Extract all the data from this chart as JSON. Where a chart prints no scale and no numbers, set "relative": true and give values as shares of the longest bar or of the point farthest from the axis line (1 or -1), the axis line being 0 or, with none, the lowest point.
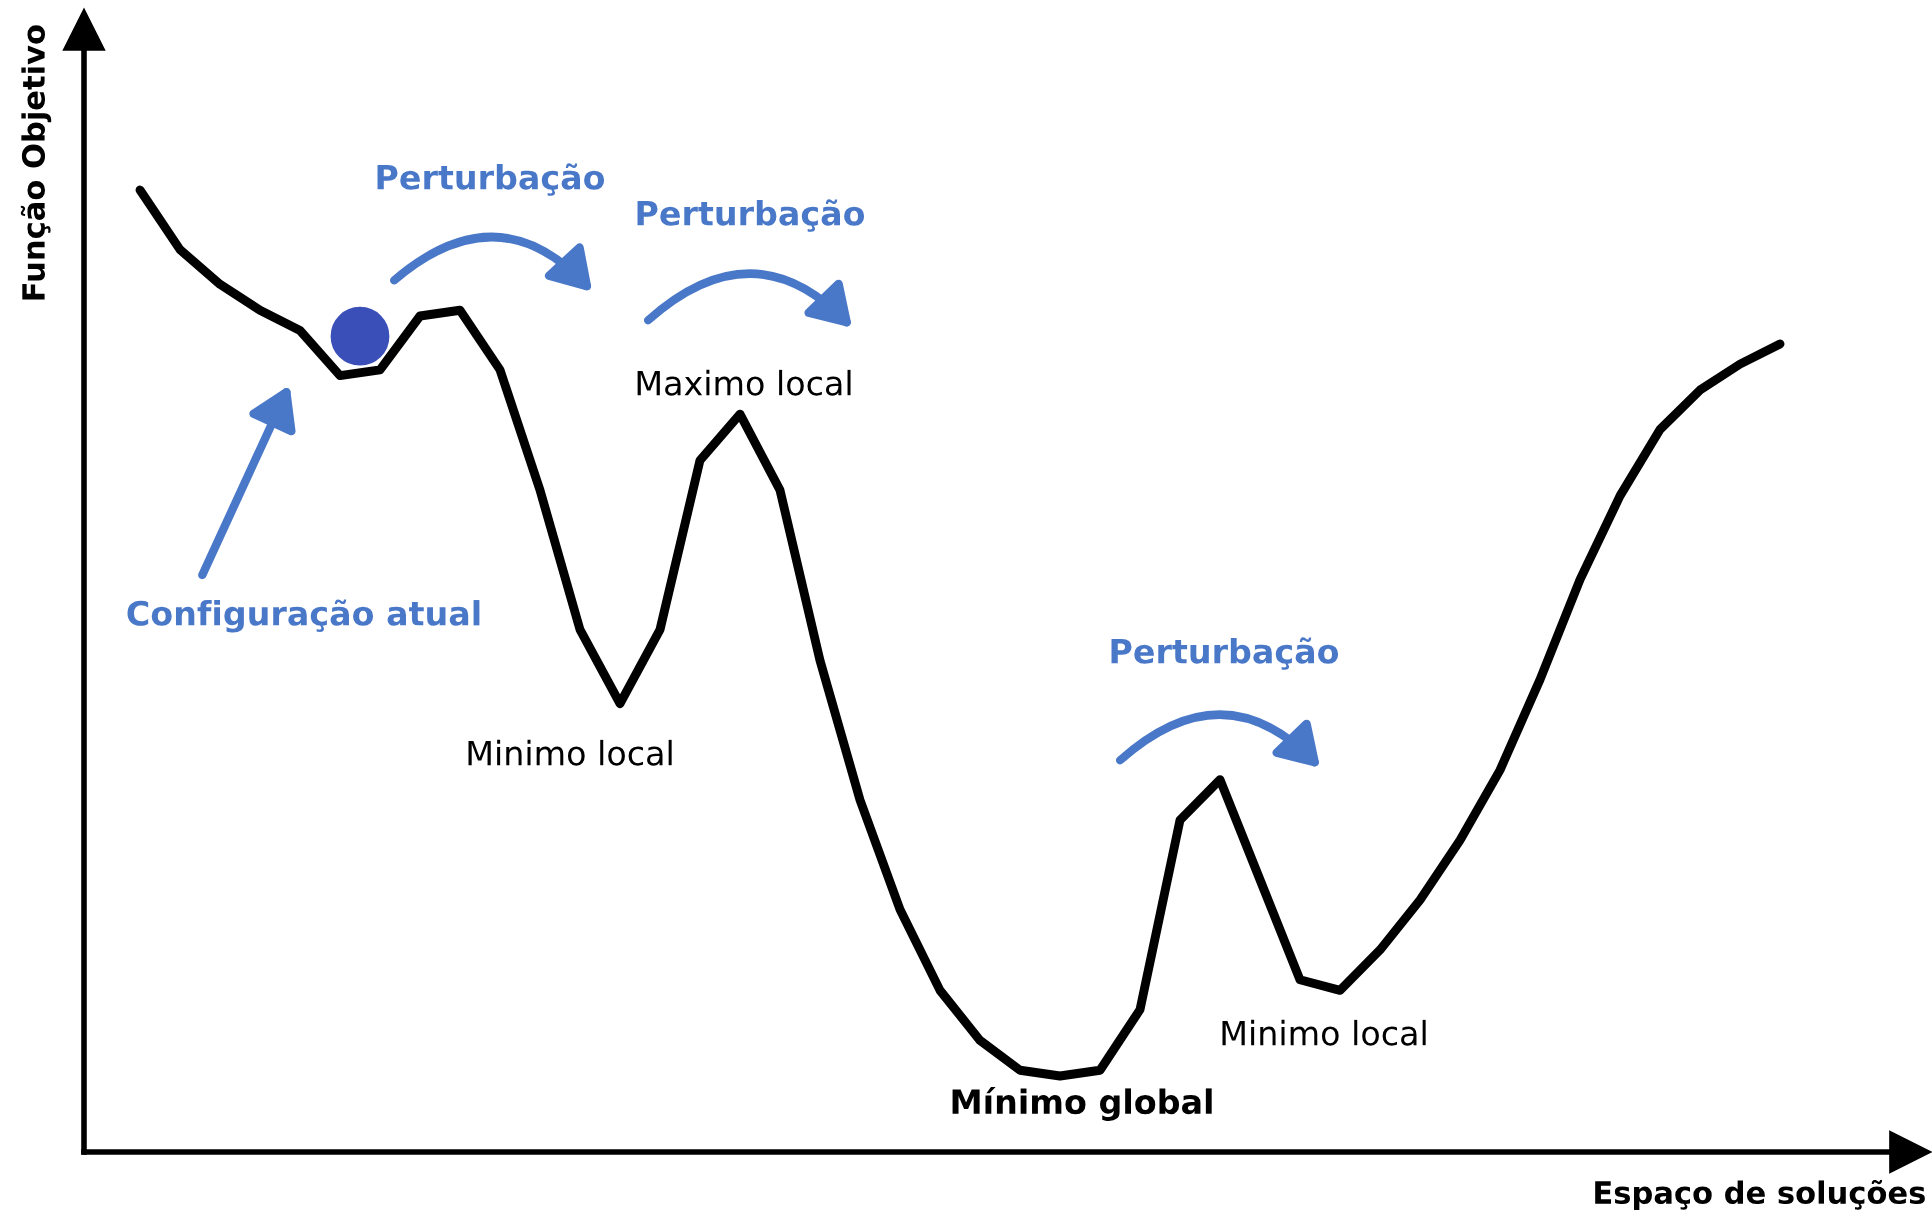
{
  "chart_data": {
    "type": "line",
    "relative": true,
    "xlabel": "Espaço de soluções",
    "ylabel": "Função Objetivo",
    "categories": [
      null,
      null,
      null,
      null,
      null,
      null,
      null,
      null,
      null,
      null,
      null,
      null,
      null,
      null,
      null,
      null,
      null,
      null,
      null,
      null,
      null,
      null,
      null,
      null,
      null,
      null,
      null,
      null,
      null,
      null,
      null,
      null,
      null,
      null,
      null,
      null,
      null,
      null,
      null,
      null,
      null,
      null
    ],
    "series": [
      {
        "color": "#000000",
        "values": [
          1,
          0.938,
          0.902,
          0.875,
          0.854,
          0.807,
          0.813,
          0.869,
          0.875,
          0.813,
          0.688,
          0.543,
          0.466,
          0.543,
          0.719,
          0.767,
          0.688,
          0.511,
          0.366,
          0.252,
          0.168,
          0.116,
          0.085,
          0.079,
          0.085,
          0.148,
          0.345,
          0.387,
          0.283,
          0.179,
          0.168,
          0.21,
          0.262,
          0.324,
          0.397,
          0.491,
          0.595,
          0.682,
          0.751,
          0.792,
          0.819,
          0.84
        ]
      }
    ],
    "annotations": [
      "Perturbação",
      "Perturbação",
      "Perturbação",
      "Maximo local",
      "Minimo local",
      "Mínimo global",
      "Minimo local",
      "Configuração atual"
    ],
    "legend": false,
    "marker": "none"
  }
}
